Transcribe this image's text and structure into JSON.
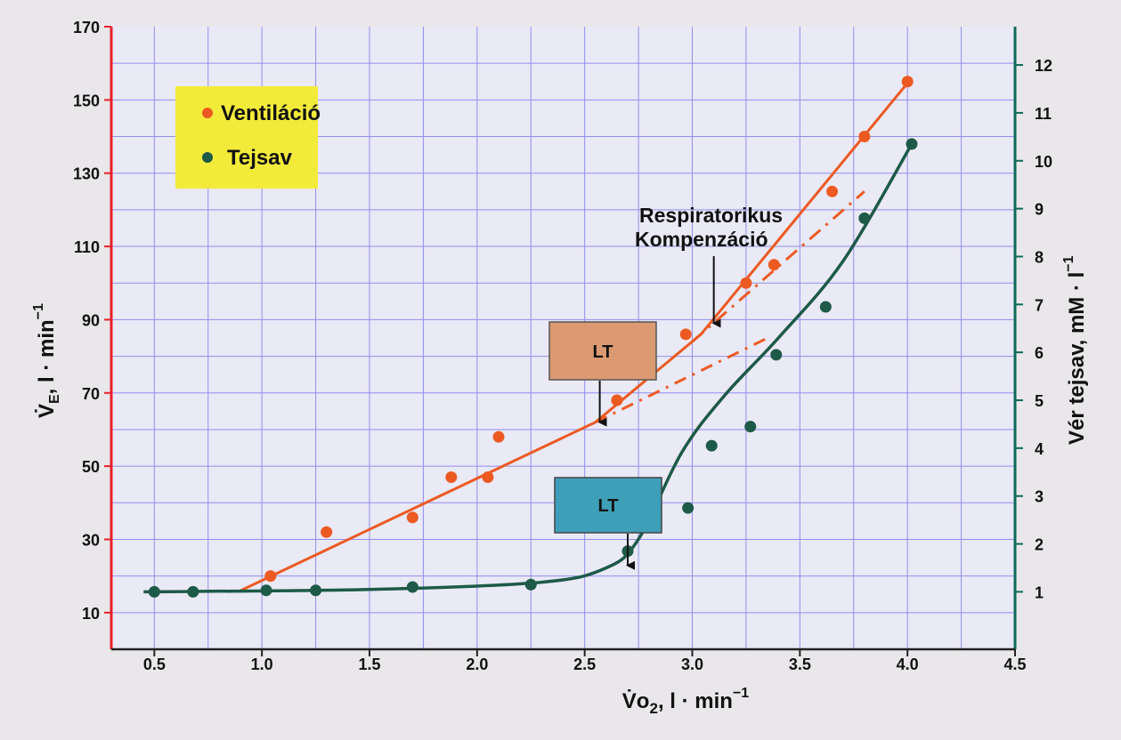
{
  "colors": {
    "plot_bg": "#eae9f6",
    "grid": "#8f8ff0",
    "left_axis": "#e8202a",
    "right_axis": "#0e6a5a",
    "ventilation": "#ec5a22",
    "lactate": "#1d5a47",
    "legend_bg": "#f3eb3a",
    "lt_top_bg": "#dc9a72",
    "lt_bottom_bg": "#3f9fb8"
  },
  "chart_data": {
    "type": "scatter",
    "x": {
      "label_main": "V̇o",
      "label_sub": "2",
      "label_rest": ", l · min",
      "label_sup": "−1",
      "range": [
        0.3,
        4.5
      ],
      "ticks": [
        0.5,
        1.0,
        1.5,
        2.0,
        2.5,
        3.0,
        3.5,
        4.0,
        4.5
      ],
      "tick_labels": [
        "0.5",
        "1.0",
        "1.5",
        "2.0",
        "2.5",
        "3.0",
        "3.5",
        "4.0",
        "4.5"
      ]
    },
    "y_left": {
      "label_main": "V̇",
      "label_sub": "E",
      "label_rest": ", l · min",
      "label_sup": "−1",
      "range": [
        0,
        170
      ],
      "ticks": [
        10,
        30,
        50,
        70,
        90,
        110,
        130,
        150,
        170
      ],
      "tick_labels": [
        "10",
        "30",
        "50",
        "70",
        "90",
        "110",
        "130",
        "150",
        "170"
      ]
    },
    "y_right": {
      "label": "Vér tejsav, mM · l",
      "label_sup": "−1",
      "range": [
        -0.2,
        12.8
      ],
      "ticks": [
        1,
        2,
        3,
        4,
        5,
        6,
        7,
        8,
        9,
        10,
        11,
        12
      ],
      "tick_labels": [
        "1",
        "2",
        "3",
        "4",
        "5",
        "6",
        "7",
        "8",
        "9",
        "10",
        "11",
        "12"
      ]
    },
    "grid": true,
    "legend_position": "top-left",
    "series": [
      {
        "name": "Ventiláció",
        "axis": "left",
        "x": [
          1.04,
          1.3,
          1.7,
          1.88,
          2.05,
          2.1,
          2.65,
          2.97,
          3.25,
          3.38,
          3.65,
          3.8,
          4.0
        ],
        "y": [
          20,
          32,
          36,
          47,
          47,
          58,
          68,
          86,
          100,
          105,
          125,
          140,
          155
        ],
        "fit": {
          "segment1": [
            [
              0.9,
              16
            ],
            [
              2.55,
              62
            ],
            [
              3.04,
              86
            ],
            [
              4.02,
              156
            ]
          ],
          "dashed_extension": [
            [
              2.55,
              62
            ],
            [
              3.35,
              85
            ]
          ],
          "dashdot_extension": [
            [
              3.0,
              84
            ],
            [
              3.8,
              125
            ]
          ]
        }
      },
      {
        "name": "Tejsav",
        "axis": "right",
        "x": [
          0.5,
          0.68,
          1.02,
          1.25,
          1.7,
          2.25,
          2.7,
          2.98,
          3.09,
          3.27,
          3.39,
          3.62,
          3.8,
          4.02
        ],
        "y": [
          1.0,
          1.0,
          1.03,
          1.03,
          1.1,
          1.15,
          1.85,
          2.75,
          4.05,
          4.45,
          5.95,
          6.95,
          8.8,
          10.35
        ],
        "fit": [
          [
            0.45,
            1.0
          ],
          [
            1.5,
            1.05
          ],
          [
            2.3,
            1.2
          ],
          [
            2.6,
            1.5
          ],
          [
            2.75,
            2.1
          ],
          [
            2.95,
            3.9
          ],
          [
            3.15,
            5.1
          ],
          [
            3.4,
            6.3
          ],
          [
            3.7,
            7.9
          ],
          [
            4.02,
            10.35
          ]
        ]
      }
    ],
    "annotations": [
      {
        "lines": [
          "Respiratorikus",
          "Kompenzáció"
        ],
        "arrow_to_x": 3.1,
        "arrow_to_y_left": 89
      },
      {
        "label": "LT",
        "arrow_to_x": 2.57,
        "arrow_to_y_left": 62
      },
      {
        "label": "LT",
        "arrow_to_x": 2.7,
        "arrow_to_y_right": 1.55
      }
    ]
  }
}
